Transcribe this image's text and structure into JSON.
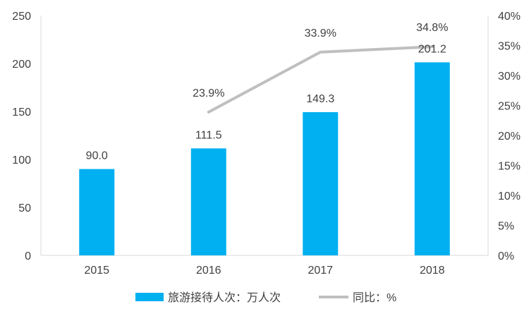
{
  "chart_data": {
    "type": "bar",
    "categories": [
      "2015",
      "2016",
      "2017",
      "2018"
    ],
    "bar_series": {
      "name": "旅游接待人次：万人次",
      "values": [
        90.0,
        111.5,
        149.3,
        201.2
      ],
      "labels": [
        "90.0",
        "111.5",
        "149.3",
        "201.2"
      ],
      "color": "#00B0F0"
    },
    "line_series": {
      "name": "同比：%",
      "x": [
        "2016",
        "2017",
        "2018"
      ],
      "values": [
        23.9,
        33.9,
        34.8
      ],
      "labels": [
        "23.9%",
        "33.9%",
        "34.8%"
      ],
      "color": "#BFBFBF"
    },
    "y_left": {
      "ylim": [
        0,
        250
      ],
      "ticks": [
        "0",
        "50",
        "100",
        "150",
        "200",
        "250"
      ]
    },
    "y_right": {
      "ylim": [
        0,
        40
      ],
      "ticks": [
        "0%",
        "5%",
        "10%",
        "15%",
        "20%",
        "25%",
        "30%",
        "35%",
        "40%"
      ]
    },
    "grid": false,
    "legend_position": "bottom"
  }
}
